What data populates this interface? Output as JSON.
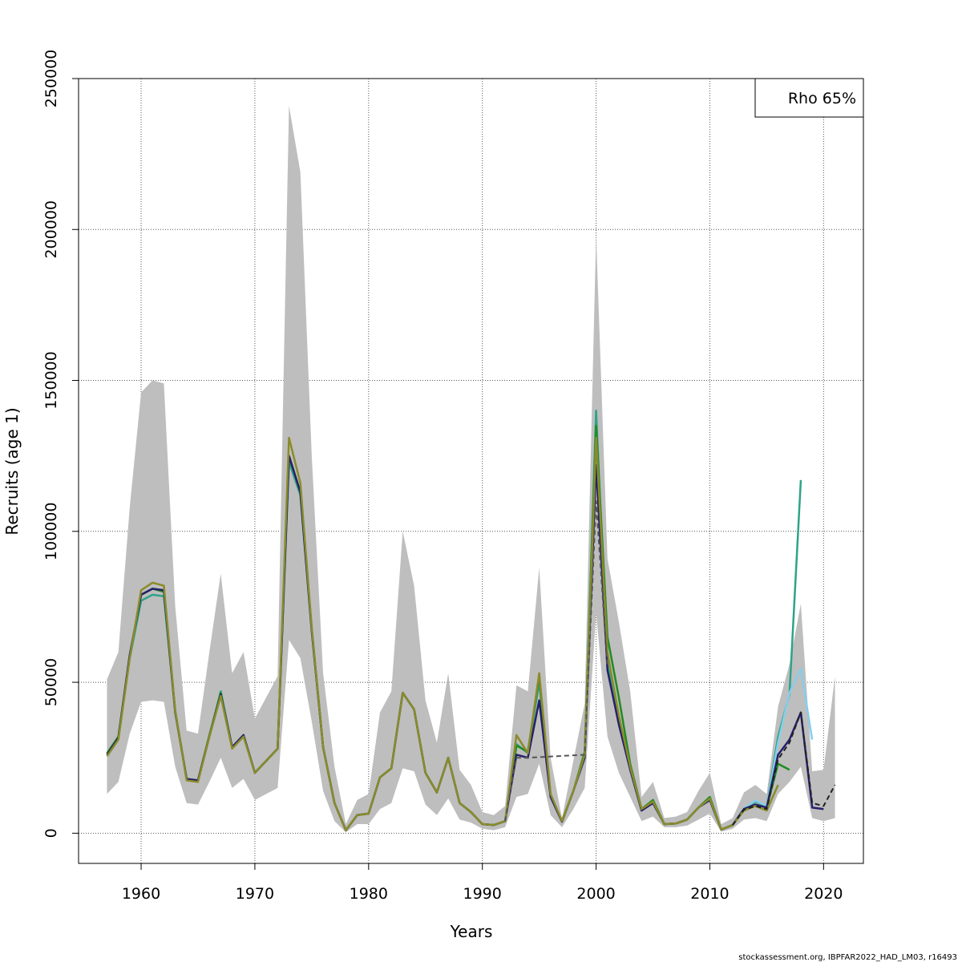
{
  "chart_data": {
    "type": "line",
    "xlabel": "Years",
    "ylabel": "Recruits (age 1)",
    "xlim": [
      1954.5,
      2023.5
    ],
    "ylim": [
      -10000,
      250000
    ],
    "x_ticks": [
      1960,
      1970,
      1980,
      1990,
      2000,
      2010,
      2020
    ],
    "y_ticks": [
      0,
      50000,
      100000,
      150000,
      200000,
      250000
    ],
    "grid": true,
    "legend_text": "Rho 65%",
    "legend_position": "top-right",
    "footer": "stockassessment.org, IBPFAR2022_HAD_LM03, r16493",
    "confidence_band": {
      "color": "#bebebe",
      "x": [
        1957,
        1958,
        1959,
        1960,
        1961,
        1962,
        1963,
        1964,
        1965,
        1966,
        1967,
        1968,
        1969,
        1970,
        1971,
        1972,
        1973,
        1974,
        1975,
        1976,
        1977,
        1978,
        1979,
        1980,
        1981,
        1982,
        1983,
        1984,
        1985,
        1986,
        1987,
        1988,
        1989,
        1990,
        1991,
        1992,
        1993,
        1994,
        1995,
        1996,
        1997,
        1998,
        1999,
        2000,
        2001,
        2002,
        2003,
        2004,
        2005,
        2006,
        2007,
        2008,
        2009,
        2010,
        2011,
        2012,
        2013,
        2014,
        2015,
        2016,
        2017,
        2018,
        2019,
        2020,
        2021
      ],
      "upper": [
        51000,
        60000,
        108000,
        146000,
        150000,
        149000,
        75000,
        34000,
        33000,
        60000,
        86000,
        53000,
        60000,
        38000,
        45000,
        52000,
        241000,
        219000,
        125000,
        53000,
        22000,
        3000,
        11000,
        13000,
        40000,
        47000,
        100000,
        82000,
        44000,
        30000,
        53000,
        21000,
        16000,
        7000,
        6000,
        9000,
        49000,
        47000,
        88000,
        25000,
        5000,
        24000,
        43000,
        198000,
        91000,
        70000,
        47000,
        12000,
        17000,
        5000,
        5500,
        7000,
        14000,
        20000,
        3000,
        5000,
        13500,
        16000,
        13000,
        42000,
        56000,
        76000,
        20500,
        21000,
        52000
      ],
      "lower": [
        13000,
        17000,
        33000,
        43500,
        44000,
        43500,
        22000,
        10000,
        9500,
        17000,
        25000,
        15000,
        18000,
        11000,
        13000,
        15000,
        64000,
        58000,
        37000,
        14000,
        4000,
        300,
        3000,
        3000,
        8000,
        10000,
        21500,
        20500,
        9500,
        6000,
        11500,
        4500,
        3500,
        1500,
        1000,
        2000,
        12000,
        13000,
        23000,
        6000,
        2000,
        8000,
        15000,
        73000,
        32000,
        20000,
        12000,
        4000,
        5500,
        2000,
        2000,
        2500,
        4500,
        6500,
        500,
        1500,
        4500,
        5000,
        4000,
        13000,
        17000,
        22000,
        5000,
        4000,
        5000
      ]
    },
    "series": [
      {
        "color": "#2ea388",
        "dashed": false,
        "x": [
          1957,
          1958,
          1959,
          1960,
          1961,
          1962,
          1963,
          1964,
          1965,
          1966,
          1967,
          1968,
          1969,
          1970,
          1971,
          1972,
          1973,
          1974,
          1975,
          1976,
          1977,
          1978,
          1979,
          1980,
          1981,
          1982,
          1983,
          1984,
          1985,
          1986,
          1987,
          1988,
          1989,
          1990,
          1991,
          1992,
          1993,
          1994,
          1995,
          1996,
          1997,
          1998,
          1999,
          2000,
          2001,
          2002,
          2003,
          2004,
          2005,
          2006,
          2007,
          2008,
          2009,
          2010,
          2011,
          2012,
          2013,
          2014,
          2015,
          2016,
          2017,
          2018
        ],
        "values": [
          26000,
          31500,
          58000,
          77000,
          79000,
          78500,
          40000,
          18000,
          17500,
          32000,
          47000,
          28500,
          32500,
          20000,
          24000,
          28000,
          123000,
          112000,
          67000,
          28500,
          10000,
          1000,
          6000,
          6500,
          18500,
          21500,
          46500,
          41000,
          20000,
          13500,
          25000,
          10000,
          7000,
          3000,
          2700,
          4000,
          29500,
          26500,
          50000,
          12500,
          4000,
          14000,
          26000,
          140000,
          56000,
          38000,
          22000,
          8000,
          11000,
          3000,
          3200,
          4500,
          8500,
          12000,
          1200,
          2700,
          8000,
          10500,
          9000,
          32000,
          46000,
          117000
        ]
      },
      {
        "color": "#87ceeb",
        "dashed": false,
        "x": [
          2012,
          2013,
          2014,
          2015,
          2016,
          2017,
          2018,
          2019
        ],
        "values": [
          2800,
          8200,
          10800,
          9000,
          30000,
          46500,
          54500,
          31000
        ]
      },
      {
        "color": "#228b22",
        "dashed": false,
        "x": [
          1957,
          1958,
          1959,
          1960,
          1961,
          1962,
          1963,
          1964,
          1965,
          1966,
          1967,
          1968,
          1969,
          1970,
          1971,
          1972,
          1973,
          1974,
          1975,
          1976,
          1977,
          1978,
          1979,
          1980,
          1981,
          1982,
          1983,
          1984,
          1985,
          1986,
          1987,
          1988,
          1989,
          1990,
          1991,
          1992,
          1993,
          1994,
          1995,
          1996,
          1997,
          1998,
          1999,
          2000,
          2001,
          2002,
          2003,
          2004,
          2005,
          2006,
          2007,
          2008,
          2009,
          2010,
          2011,
          2012,
          2013,
          2014,
          2015,
          2016,
          2017
        ],
        "values": [
          26500,
          32000,
          59000,
          79000,
          81000,
          80000,
          40500,
          18000,
          17500,
          32500,
          46500,
          28500,
          32500,
          20000,
          24000,
          28000,
          125000,
          113000,
          68000,
          28500,
          10000,
          1000,
          6000,
          6500,
          18500,
          21500,
          46500,
          41000,
          20000,
          13500,
          25000,
          10000,
          7000,
          3000,
          2700,
          4000,
          29000,
          27000,
          52000,
          12500,
          4000,
          14000,
          27000,
          135000,
          65000,
          45000,
          23000,
          8000,
          11000,
          3000,
          3200,
          4500,
          8500,
          12000,
          1200,
          2700,
          8000,
          9500,
          8500,
          23000,
          21000
        ]
      },
      {
        "color": "#25206b",
        "dashed": false,
        "x": [
          1957,
          1958,
          1959,
          1960,
          1961,
          1962,
          1963,
          1964,
          1965,
          1966,
          1967,
          1968,
          1969,
          1970,
          1971,
          1972,
          1973,
          1974,
          1975,
          1976,
          1977,
          1978,
          1979,
          1980,
          1981,
          1982,
          1983,
          1984,
          1985,
          1986,
          1987,
          1988,
          1989,
          1990,
          1991,
          1992,
          1993,
          1994,
          1995,
          1996,
          1997,
          1998,
          1999,
          2000,
          2001,
          2002,
          2003,
          2004,
          2005,
          2006,
          2007,
          2008,
          2009,
          2010,
          2011,
          2012,
          2013,
          2014,
          2015,
          2016,
          2017,
          2018,
          2019,
          2020
        ],
        "values": [
          26000,
          31500,
          59000,
          79000,
          81000,
          80500,
          40000,
          18000,
          17500,
          32000,
          46000,
          28500,
          32500,
          20000,
          24000,
          28000,
          125000,
          113000,
          67000,
          28500,
          10000,
          1000,
          6000,
          6500,
          18500,
          21500,
          46500,
          41000,
          20000,
          13500,
          25000,
          10000,
          7000,
          3000,
          2700,
          4000,
          26000,
          25000,
          44000,
          12000,
          3800,
          14000,
          25000,
          122000,
          54000,
          36000,
          21000,
          7500,
          10000,
          3000,
          3200,
          4500,
          8500,
          11000,
          1200,
          2700,
          8000,
          9500,
          8500,
          26000,
          31000,
          40000,
          8500,
          8000
        ]
      },
      {
        "color": "#8b8b2a",
        "dashed": false,
        "x": [
          1957,
          1958,
          1959,
          1960,
          1961,
          1962,
          1963,
          1964,
          1965,
          1966,
          1967,
          1968,
          1969,
          1970,
          1971,
          1972,
          1973,
          1974,
          1975,
          1976,
          1977,
          1978,
          1979,
          1980,
          1981,
          1982,
          1983,
          1984,
          1985,
          1986,
          1987,
          1988,
          1989,
          1990,
          1991,
          1992,
          1993,
          1994,
          1995,
          1996,
          1997,
          1998,
          1999,
          2000,
          2001,
          2002,
          2003,
          2004,
          2005,
          2006,
          2007,
          2008,
          2009,
          2010,
          2011,
          2012,
          2013,
          2014,
          2015,
          2016
        ],
        "values": [
          25500,
          31000,
          58000,
          80500,
          83000,
          82000,
          40500,
          17500,
          17000,
          32000,
          45500,
          28000,
          32000,
          20000,
          24000,
          28000,
          131000,
          116000,
          68000,
          28500,
          10000,
          1000,
          6000,
          6500,
          18500,
          21500,
          46500,
          41000,
          20000,
          13500,
          25000,
          10000,
          7000,
          3000,
          2700,
          4000,
          32500,
          26500,
          53000,
          13000,
          4000,
          14000,
          26000,
          131000,
          60000,
          39000,
          22000,
          8000,
          10500,
          3000,
          3200,
          4500,
          8500,
          11500,
          1200,
          2700,
          7500,
          9000,
          7500,
          16000
        ]
      },
      {
        "color": "#222222",
        "dashed": true,
        "x": [
          2012,
          2013,
          2014,
          2015,
          2016,
          2017,
          2018,
          2019,
          2020,
          2021
        ],
        "values": [
          2700,
          7800,
          9000,
          8000,
          24500,
          30000,
          40000,
          10000,
          9000,
          16000
        ]
      },
      {
        "color": "#555555",
        "dashed": true,
        "x": [
          1992,
          1993,
          1994,
          1999,
          2000,
          2001
        ],
        "values": [
          4000,
          25000,
          25000,
          26000,
          110000,
          55000
        ]
      }
    ]
  }
}
